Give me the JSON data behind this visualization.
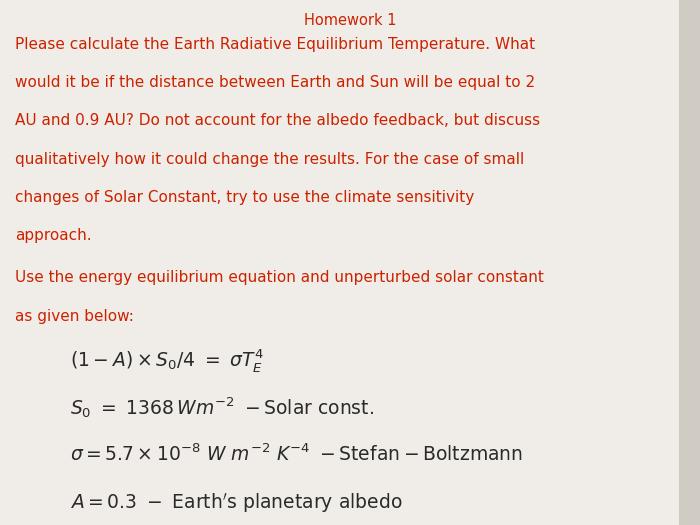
{
  "background_color": "#d0ccc4",
  "paper_color": "#f0ede8",
  "title": "Homework 1",
  "title_color": "#c0392b",
  "title_fontsize": 10.5,
  "red_color": "#cc2200",
  "black_color": "#2a2a2a",
  "p1_lines": [
    "Please calculate the Earth Radiative Equilibrium Temperature. What",
    "would it be if the distance between Earth and Sun will be equal to 2",
    "AU and 0.9 AU? Do not account for the albedo feedback, but discuss",
    "qualitatively how it could change the results. For the case of small",
    "changes of Solar Constant, try to use the climate sensitivity",
    "approach."
  ],
  "p2_lines": [
    "Use the energy equilibrium equation and unperturbed solar constant",
    "as given below:"
  ],
  "text_fontsize": 11.0,
  "eq_fontsize": 13.5,
  "figsize": [
    7.0,
    5.25
  ],
  "dpi": 100
}
